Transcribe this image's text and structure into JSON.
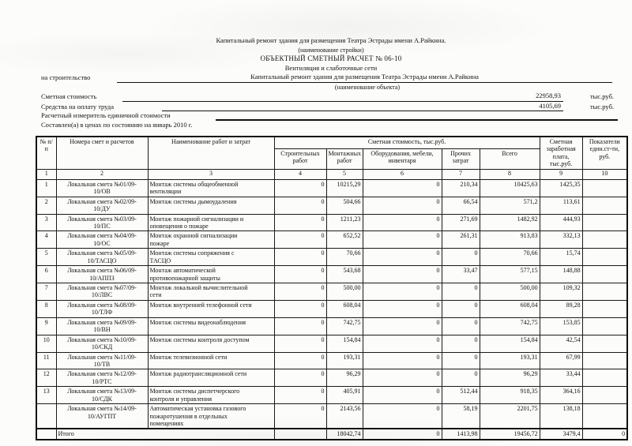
{
  "header": {
    "construction_name": "Капитальный ремонт здания для размещения Театра Эстрады имени А.Райкина.",
    "construction_caption": "(наименование стройки)",
    "doc_title": "ОБЪЕКТНЫЙ СМЕТНЫЙ РАСЧЕТ № 06-10",
    "doc_subtitle": "Вентиляция и слаботочные сети",
    "for_construction_label": "на строительство",
    "object_name": "Капитальный ремонт здания для размещения Театра Эстрады имени А.Райкина",
    "object_caption": "(наименование объекта)",
    "estimate_cost_label": "Сметная стоимость",
    "estimate_cost_value": "22958,93",
    "estimate_cost_unit": "тыс.руб.",
    "labor_funds_label": "Средства на оплату труда",
    "labor_funds_value": "4105,69",
    "labor_funds_unit": "тыс.руб.",
    "unit_cost_measure_label": "Расчетный измеритель единичной стоимости",
    "price_date_note": "Составлен(а) в ценах по состоянию на январь 2010 г."
  },
  "table": {
    "col_headers": {
      "num": "№ п/п",
      "estimate_numbers": "Номера смет и расчетов",
      "work_name": "Наименование работ и затрат",
      "cost_group": "Сметная стоимость, тыс.руб.",
      "construction_works": "Строительных работ",
      "installation_works": "Монтажных работ",
      "equipment": "Оборудования, мебели, инвентаря",
      "other_costs": "Прочих затрат",
      "total": "Всего",
      "wages": "Сметная заработная плата, тыс.руб.",
      "unit_cost_indicators": "Показатели един.ст-ти, руб."
    },
    "col_numbers": [
      "1",
      "2",
      "3",
      "4",
      "5",
      "6",
      "7",
      "8",
      "9",
      "10"
    ],
    "rows": [
      [
        "1",
        "Локальная смета №01/09-\n10/ОВ",
        "Монтаж системы общеобменной\nвентиляции",
        "0",
        "10215,29",
        "0",
        "210,34",
        "10425,63",
        "1425,35",
        ""
      ],
      [
        "2",
        "Локальная смета №02/09-\n10/ДУ",
        "Монтаж системы дымоудаления",
        "0",
        "504,66",
        "0",
        "66,54",
        "571,2",
        "113,61",
        ""
      ],
      [
        "3",
        "Локальная смета №03/09-\n10/ПС",
        "Монтаж пожарной сигнализации и\nоповещения о пожаре",
        "0",
        "1211,23",
        "0",
        "271,69",
        "1482,92",
        "444,93",
        ""
      ],
      [
        "4",
        "Локальная смета №04/09-\n10/ОС",
        "Монтаж охранной сигнализации\nпожаре",
        "0",
        "652,52",
        "0",
        "261,31",
        "913,83",
        "332,13",
        ""
      ],
      [
        "5",
        "Локальная смета №05/09-\n10/ТАСЦО",
        "Монтаж системы сопряжения с\nТАСЦО",
        "0",
        "70,66",
        "0",
        "0",
        "70,66",
        "15,74",
        ""
      ],
      [
        "6",
        "Локальная смета №06/09-\n10/АППЗ",
        "Монтаж автоматической\nпротивопожарной защиты",
        "0",
        "543,68",
        "0",
        "33,47",
        "577,15",
        "148,88",
        ""
      ],
      [
        "7",
        "Локальная смета №07/09-\n10/ЛВС",
        "Монтаж локальной вычислительной\nсети",
        "0",
        "500,00",
        "0",
        "0",
        "500,00",
        "109,32",
        ""
      ],
      [
        "8",
        "Локальная смета №08/09-\n10/ТЛФ",
        "Монтаж внутренней телефонной сети",
        "0",
        "608,04",
        "0",
        "0",
        "608,04",
        "89,28",
        ""
      ],
      [
        "9",
        "Локальная смета №09/09-\n10/ВН",
        "Монтаж системы видеонаблюдения",
        "0",
        "742,75",
        "0",
        "0",
        "742,75",
        "153,85",
        ""
      ],
      [
        "10",
        "Локальная смета №10/09-\n10/СКД",
        "Монтаж системы контроля доступом",
        "0",
        "154,84",
        "0",
        "0",
        "154,84",
        "42,54",
        ""
      ],
      [
        "11",
        "Локальная смета №11/09-\n10/ТВ",
        "Монтаж телевизионной сети",
        "0",
        "193,31",
        "0",
        "0",
        "193,31",
        "67,99",
        ""
      ],
      [
        "12",
        "Локальная смета №12/09-\n10/РТС",
        "Монтаж радиотрансляционной сети",
        "0",
        "96,29",
        "0",
        "0",
        "96,29",
        "33,44",
        ""
      ],
      [
        "13",
        "Локальная смета №13/09-\n10/СДК",
        "Монтаж системы диспетчерского\nконтроля и управления",
        "0",
        "405,91",
        "0",
        "512,44",
        "918,35",
        "364,16",
        ""
      ],
      [
        "",
        "Локальная смета №14/09-\n10/АУГПТ",
        "Автоматическая установка газового\nпожаротушения в отдельных\nпомещениях",
        "0",
        "2143,56",
        "0",
        "58,19",
        "2201,75",
        "138,18",
        ""
      ]
    ],
    "total_row": {
      "label": "Итого",
      "cells": [
        "",
        "18042,74",
        "0",
        "1413,98",
        "19456,72",
        "3479,4",
        "0"
      ]
    }
  }
}
